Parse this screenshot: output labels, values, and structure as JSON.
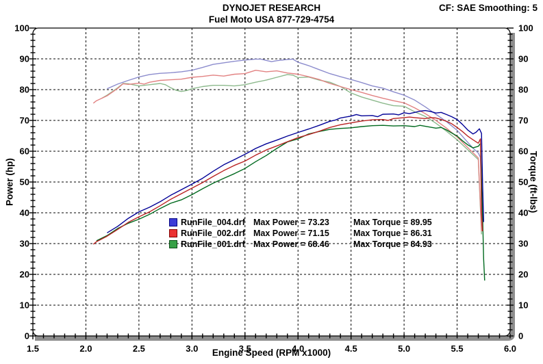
{
  "header": {
    "title": "DYNOJET RESEARCH",
    "subtitle": "Fuel Moto USA 877-729-4754",
    "correction": "CF: SAE  Smoothing: 5"
  },
  "chart_data": {
    "type": "line",
    "title": "DYNOJET RESEARCH",
    "subtitle": "Fuel Moto USA 877-729-4754",
    "xlabel": "Engine Speed (RPM x1000)",
    "ylabel_left": "Power (hp)",
    "ylabel_right": "Torque (ft-lbs)",
    "xlim": [
      1.5,
      6.0
    ],
    "ylim": [
      0,
      100
    ],
    "x_ticks": [
      "1.5",
      "2.0",
      "2.5",
      "3.0",
      "3.5",
      "4.0",
      "4.5",
      "5.0",
      "5.5",
      "6.0"
    ],
    "y_ticks": [
      "0",
      "10",
      "20",
      "30",
      "40",
      "50",
      "60",
      "70",
      "80",
      "90",
      "100"
    ],
    "x_minor_step": 0.1,
    "y_minor_step": 2,
    "grid": "dashed",
    "grid_color": "#000000",
    "background": "#ffffff",
    "frame_shadow_color": "#8e8e8e",
    "legend": [
      {
        "file": "RunFile_004.drf",
        "power_text": "Max Power = 73.23",
        "torque_text": "Max Torque = 89.95",
        "max_power": 73.23,
        "max_torque": 89.95,
        "swatch_color": "#3c3cd7",
        "swatch_border": "#000080"
      },
      {
        "file": "RunFile_002.drf",
        "power_text": "Max Power = 71.15",
        "torque_text": "Max Torque = 86.31",
        "max_power": 71.15,
        "max_torque": 86.31,
        "swatch_color": "#eb3232",
        "swatch_border": "#800000"
      },
      {
        "file": "RunFile_001.drf",
        "power_text": "Max Power = 68.46",
        "torque_text": "Max Torque = 84.93",
        "max_power": 68.46,
        "max_torque": 84.93,
        "swatch_color": "#37a046",
        "swatch_border": "#0a4a14"
      }
    ],
    "series": [
      {
        "name": "RunFile_001.drf torque",
        "color": "#8cb98c",
        "x": [
          2.15,
          2.2,
          2.3,
          2.35,
          2.4,
          2.5,
          2.6,
          2.7,
          2.75,
          2.8,
          2.85,
          2.9,
          2.95,
          3.0,
          3.1,
          3.2,
          3.3,
          3.4,
          3.5,
          3.6,
          3.7,
          3.8,
          3.9,
          3.95,
          4.0,
          4.1,
          4.2,
          4.3,
          4.4,
          4.5,
          4.6,
          4.7,
          4.8,
          4.9,
          5.0,
          5.1,
          5.2,
          5.3,
          5.4,
          5.5,
          5.6,
          5.65,
          5.7,
          5.73
        ],
        "y": [
          77.2,
          78.2,
          80.6,
          82.0,
          81.9,
          81.2,
          81.6,
          82.0,
          81.6,
          80.6,
          79.8,
          79.4,
          79.7,
          80.3,
          81.0,
          81.4,
          81.4,
          81.2,
          81.6,
          82.4,
          83.1,
          84.0,
          84.9,
          84.7,
          83.9,
          84.1,
          83.1,
          82.4,
          81.0,
          78.9,
          77.6,
          76.6,
          75.6,
          74.8,
          74.6,
          72.8,
          71.3,
          69.1,
          66.5,
          63.7,
          60.5,
          58.9,
          57.3,
          33.0
        ]
      },
      {
        "name": "RunFile_002.drf torque",
        "color": "#e28282",
        "x": [
          2.07,
          2.1,
          2.2,
          2.3,
          2.35,
          2.4,
          2.5,
          2.55,
          2.6,
          2.7,
          2.8,
          2.9,
          3.0,
          3.1,
          3.2,
          3.3,
          3.4,
          3.5,
          3.6,
          3.7,
          3.8,
          3.9,
          4.0,
          4.1,
          4.2,
          4.3,
          4.4,
          4.5,
          4.6,
          4.7,
          4.8,
          4.9,
          5.0,
          5.1,
          5.2,
          5.3,
          5.4,
          5.5,
          5.6,
          5.65,
          5.7,
          5.73
        ],
        "y": [
          75.6,
          76.4,
          78.0,
          80.4,
          81.9,
          81.7,
          82.1,
          81.8,
          82.4,
          83.0,
          83.2,
          83.4,
          84.0,
          84.3,
          84.7,
          84.4,
          85.0,
          85.2,
          86.3,
          85.8,
          86.1,
          85.4,
          85.0,
          84.2,
          83.3,
          82.0,
          81.0,
          80.0,
          79.1,
          78.1,
          77.2,
          76.4,
          75.7,
          74.1,
          72.2,
          70.0,
          67.5,
          64.6,
          61.2,
          59.5,
          57.8,
          34.0
        ]
      },
      {
        "name": "RunFile_004.drf torque",
        "color": "#8c8ccd",
        "x": [
          2.2,
          2.3,
          2.4,
          2.5,
          2.6,
          2.7,
          2.8,
          2.9,
          3.0,
          3.1,
          3.2,
          3.3,
          3.4,
          3.5,
          3.6,
          3.65,
          3.7,
          3.75,
          3.8,
          3.9,
          3.95,
          4.0,
          4.1,
          4.2,
          4.3,
          4.4,
          4.5,
          4.6,
          4.7,
          4.8,
          4.9,
          5.0,
          5.1,
          5.2,
          5.3,
          5.4,
          5.5,
          5.6,
          5.65,
          5.7,
          5.72,
          5.74
        ],
        "y": [
          80.3,
          81.8,
          83.0,
          84.1,
          84.9,
          85.3,
          85.5,
          85.8,
          86.3,
          87.2,
          88.2,
          88.7,
          89.2,
          89.6,
          89.9,
          89.9,
          89.5,
          89.1,
          89.4,
          89.8,
          89.9,
          88.9,
          87.8,
          86.5,
          85.2,
          84.2,
          83.3,
          82.3,
          81.2,
          80.5,
          79.3,
          78.2,
          76.6,
          74.4,
          72.0,
          69.6,
          66.8,
          62.9,
          61.0,
          59.4,
          58.0,
          36.0
        ]
      },
      {
        "name": "RunFile_001.drf power",
        "color": "#00691e",
        "x": [
          2.1,
          2.2,
          2.3,
          2.4,
          2.5,
          2.6,
          2.7,
          2.8,
          2.9,
          3.0,
          3.1,
          3.2,
          3.3,
          3.4,
          3.5,
          3.6,
          3.7,
          3.8,
          3.9,
          4.0,
          4.1,
          4.2,
          4.3,
          4.4,
          4.5,
          4.6,
          4.7,
          4.8,
          4.9,
          5.0,
          5.1,
          5.15,
          5.2,
          5.3,
          5.35,
          5.4,
          5.45,
          5.5,
          5.55,
          5.6,
          5.65,
          5.7,
          5.72,
          5.74,
          5.75,
          5.76
        ],
        "y": [
          30.9,
          32.6,
          34.9,
          36.6,
          37.9,
          39.5,
          41.4,
          43.1,
          44.2,
          45.9,
          47.8,
          49.6,
          51.2,
          52.7,
          54.4,
          56.6,
          58.6,
          60.9,
          63.0,
          64.0,
          65.6,
          66.4,
          67.1,
          67.4,
          67.6,
          68.0,
          68.3,
          68.4,
          68.2,
          68.3,
          68.0,
          68.4,
          68.1,
          67.5,
          67.7,
          66.9,
          65.9,
          64.9,
          63.4,
          62.1,
          61.1,
          61.6,
          62.5,
          40.0,
          25.0,
          18.0
        ]
      },
      {
        "name": "RunFile_002.drf power",
        "color": "#b92323",
        "x": [
          2.07,
          2.1,
          2.2,
          2.3,
          2.4,
          2.5,
          2.6,
          2.7,
          2.8,
          2.9,
          3.0,
          3.1,
          3.2,
          3.3,
          3.4,
          3.5,
          3.6,
          3.7,
          3.8,
          3.9,
          4.0,
          4.1,
          4.2,
          4.3,
          4.4,
          4.5,
          4.6,
          4.7,
          4.8,
          4.85,
          4.9,
          5.0,
          5.05,
          5.1,
          5.2,
          5.25,
          5.3,
          5.35,
          5.4,
          5.45,
          5.5,
          5.55,
          5.6,
          5.65,
          5.7,
          5.72,
          5.73,
          5.74
        ],
        "y": [
          29.8,
          30.6,
          32.4,
          34.6,
          36.9,
          38.7,
          40.3,
          42.3,
          44.4,
          46.2,
          48.0,
          49.8,
          51.8,
          53.7,
          55.4,
          56.8,
          58.7,
          60.4,
          61.7,
          63.1,
          64.4,
          65.4,
          66.5,
          67.7,
          68.6,
          69.2,
          69.8,
          70.2,
          70.3,
          70.0,
          70.6,
          70.9,
          71.1,
          70.9,
          70.6,
          70.9,
          70.8,
          70.3,
          69.7,
          68.9,
          67.7,
          66.4,
          64.9,
          63.7,
          62.6,
          64.0,
          40.0,
          34.0
        ]
      },
      {
        "name": "RunFile_004.drf power",
        "color": "#000096",
        "x": [
          2.2,
          2.3,
          2.4,
          2.5,
          2.6,
          2.7,
          2.8,
          2.9,
          3.0,
          3.1,
          3.2,
          3.3,
          3.4,
          3.5,
          3.6,
          3.7,
          3.8,
          3.9,
          4.0,
          4.1,
          4.2,
          4.3,
          4.35,
          4.4,
          4.5,
          4.55,
          4.6,
          4.7,
          4.75,
          4.8,
          4.9,
          4.95,
          5.0,
          5.05,
          5.1,
          5.15,
          5.2,
          5.25,
          5.3,
          5.35,
          5.4,
          5.45,
          5.5,
          5.55,
          5.6,
          5.65,
          5.68,
          5.71,
          5.73,
          5.74,
          5.75
        ],
        "y": [
          33.5,
          35.6,
          38.2,
          40.3,
          41.8,
          43.6,
          45.7,
          47.5,
          49.3,
          51.2,
          53.5,
          55.6,
          57.3,
          59.0,
          60.9,
          62.4,
          63.6,
          64.9,
          66.1,
          67.2,
          68.4,
          69.7,
          70.1,
          70.8,
          71.4,
          71.9,
          71.5,
          71.6,
          71.2,
          72.0,
          72.1,
          71.8,
          72.5,
          72.2,
          72.6,
          73.0,
          73.2,
          72.9,
          72.4,
          72.6,
          71.9,
          71.2,
          70.3,
          68.7,
          66.9,
          65.6,
          66.2,
          67.3,
          65.8,
          50.0,
          37.0
        ]
      }
    ]
  }
}
